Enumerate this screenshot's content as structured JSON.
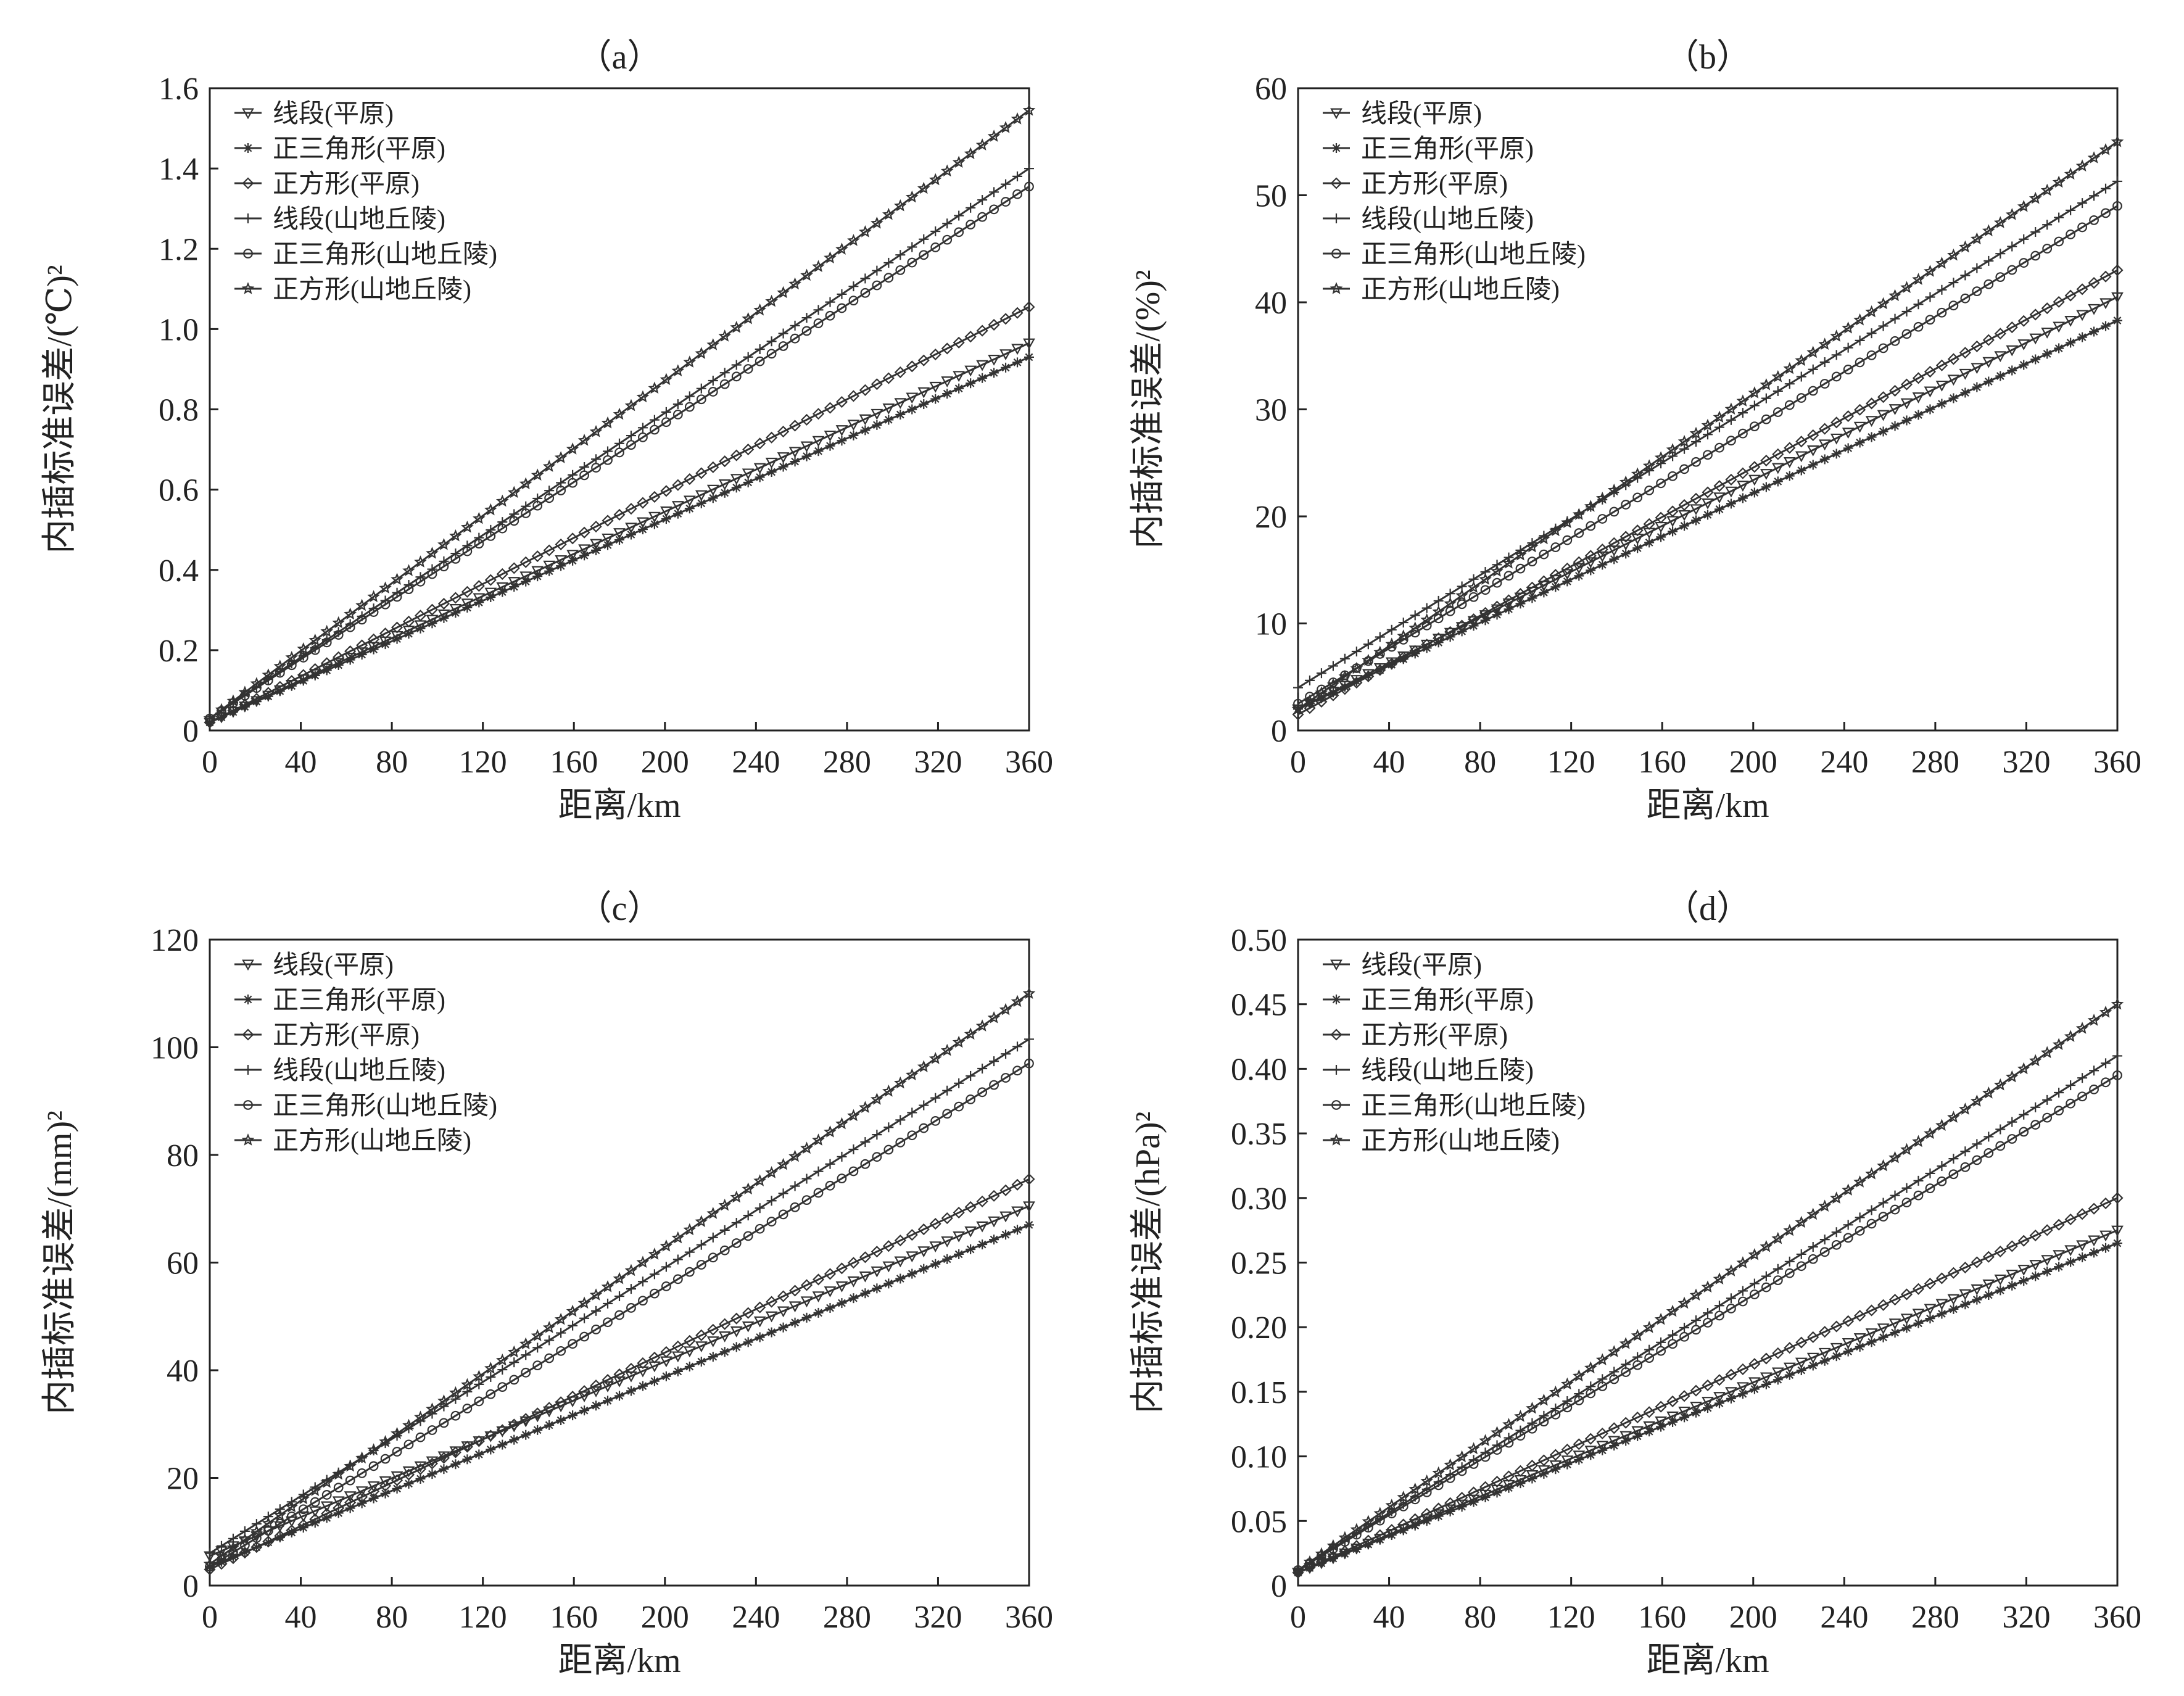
{
  "chart_data": [
    {
      "type": "line",
      "title": "（a）",
      "xlabel": "距离/km",
      "ylabel": "内插标准误差/(℃)²",
      "xlim": [
        0,
        360
      ],
      "ylim": [
        0,
        1.6
      ],
      "xticks": [
        0,
        40,
        80,
        120,
        160,
        200,
        240,
        280,
        320,
        360
      ],
      "yticks": [
        "0",
        "0.2",
        "0.4",
        "0.6",
        "0.8",
        "1.0",
        "1.2",
        "1.4",
        "1.6"
      ],
      "x_range": [
        0,
        360
      ],
      "legend_position": "top-left",
      "grid": false,
      "series": [
        {
          "name": "线段(平原)",
          "marker": "triangle-down",
          "start": 0.02,
          "end": 0.965
        },
        {
          "name": "正三角形(平原)",
          "marker": "asterisk",
          "start": 0.02,
          "end": 0.93
        },
        {
          "name": "正方形(平原)",
          "marker": "diamond",
          "start": 0.02,
          "end": 1.055
        },
        {
          "name": "线段(山地丘陵)",
          "marker": "plus",
          "start": 0.03,
          "end": 1.4
        },
        {
          "name": "正三角形(山地丘陵)",
          "marker": "circle",
          "start": 0.03,
          "end": 1.355
        },
        {
          "name": "正方形(山地丘陵)",
          "marker": "star",
          "start": 0.03,
          "end": 1.545
        }
      ]
    },
    {
      "type": "line",
      "title": "（b）",
      "xlabel": "距离/km",
      "ylabel": "内插标准误差/(%)²",
      "xlim": [
        0,
        360
      ],
      "ylim": [
        0,
        60
      ],
      "xticks": [
        0,
        40,
        80,
        120,
        160,
        200,
        240,
        280,
        320,
        360
      ],
      "yticks": [
        "0",
        "10",
        "20",
        "30",
        "40",
        "50",
        "60"
      ],
      "x_range": [
        0,
        360
      ],
      "legend_position": "top-left",
      "grid": false,
      "series": [
        {
          "name": "线段(平原)",
          "marker": "triangle-down",
          "start": 2.0,
          "end": 40.5
        },
        {
          "name": "正三角形(平原)",
          "marker": "asterisk",
          "start": 2.0,
          "end": 38.3
        },
        {
          "name": "正方形(平原)",
          "marker": "diamond",
          "start": 1.5,
          "end": 43.0
        },
        {
          "name": "线段(山地丘陵)",
          "marker": "plus",
          "start": 4.0,
          "end": 51.3
        },
        {
          "name": "正三角形(山地丘陵)",
          "marker": "circle",
          "start": 2.5,
          "end": 49.0
        },
        {
          "name": "正方形(山地丘陵)",
          "marker": "star",
          "start": 2.0,
          "end": 55.0
        }
      ]
    },
    {
      "type": "line",
      "title": "（c）",
      "xlabel": "距离/km",
      "ylabel": "内插标准误差/(mm)²",
      "xlim": [
        0,
        360
      ],
      "ylim": [
        0,
        120
      ],
      "xticks": [
        0,
        40,
        80,
        120,
        160,
        200,
        240,
        280,
        320,
        360
      ],
      "yticks": [
        "0",
        "20",
        "40",
        "60",
        "80",
        "100",
        "120"
      ],
      "x_range": [
        0,
        360
      ],
      "legend_position": "top-left",
      "grid": false,
      "series": [
        {
          "name": "线段(平原)",
          "marker": "triangle-down",
          "start": 5.5,
          "end": 70.5
        },
        {
          "name": "正三角形(平原)",
          "marker": "asterisk",
          "start": 3.5,
          "end": 67.0
        },
        {
          "name": "正方形(平原)",
          "marker": "diamond",
          "start": 3.0,
          "end": 75.5
        },
        {
          "name": "线段(山地丘陵)",
          "marker": "plus",
          "start": 6.0,
          "end": 101.5
        },
        {
          "name": "正三角形(山地丘陵)",
          "marker": "circle",
          "start": 3.5,
          "end": 97.0
        },
        {
          "name": "正方形(山地丘陵)",
          "marker": "star",
          "start": 4.0,
          "end": 110.0
        }
      ]
    },
    {
      "type": "line",
      "title": "（d）",
      "xlabel": "距离/km",
      "ylabel": "内插标准误差/(hPa)²",
      "xlim": [
        0,
        360
      ],
      "ylim": [
        0,
        0.5
      ],
      "xticks": [
        0,
        40,
        80,
        120,
        160,
        200,
        240,
        280,
        320,
        360
      ],
      "yticks": [
        "0",
        "0.05",
        "0.10",
        "0.15",
        "0.20",
        "0.25",
        "0.30",
        "0.35",
        "0.40",
        "0.45",
        "0.50"
      ],
      "x_range": [
        0,
        360
      ],
      "legend_position": "top-left",
      "grid": false,
      "series": [
        {
          "name": "线段(平原)",
          "marker": "triangle-down",
          "start": 0.01,
          "end": 0.275
        },
        {
          "name": "正三角形(平原)",
          "marker": "asterisk",
          "start": 0.01,
          "end": 0.265
        },
        {
          "name": "正方形(平原)",
          "marker": "diamond",
          "start": 0.01,
          "end": 0.3
        },
        {
          "name": "线段(山地丘陵)",
          "marker": "plus",
          "start": 0.012,
          "end": 0.41
        },
        {
          "name": "正三角形(山地丘陵)",
          "marker": "circle",
          "start": 0.012,
          "end": 0.395
        },
        {
          "name": "正方形(山地丘陵)",
          "marker": "star",
          "start": 0.012,
          "end": 0.45
        }
      ]
    }
  ]
}
